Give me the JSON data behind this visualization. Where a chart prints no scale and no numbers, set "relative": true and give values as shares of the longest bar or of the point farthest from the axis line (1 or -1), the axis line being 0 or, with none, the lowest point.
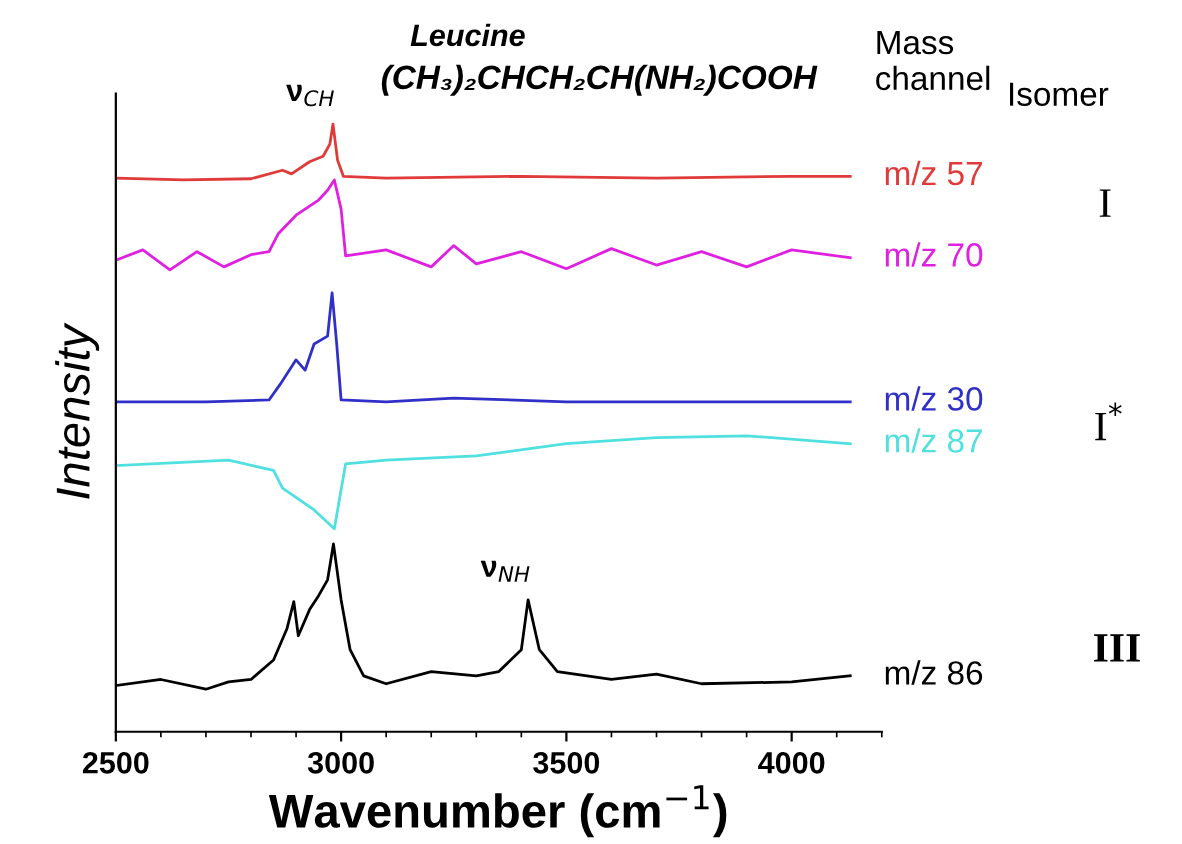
{
  "chart_data": {
    "type": "line",
    "relative": true,
    "xlabel": "Wavenumber (cm$^{−1}$)",
    "ylabel": "Intensity",
    "xlim": [
      2500,
      4200
    ],
    "xticks": [
      2500,
      3000,
      3500,
      4000
    ],
    "grid": false,
    "legend": false,
    "marker": "none",
    "line_style": "solid",
    "annotations": [
      {
        "text": "ν$_{CH}$",
        "x": 2982,
        "y": 1.0
      },
      {
        "text": "ν$_{NH}$",
        "x": 3415,
        "y": 0.217
      },
      "Leucine",
      "(CH₃)₂CHCH₂CH(NH₂)COOH",
      "Mass\nchannel",
      "Isomer",
      "I",
      "I$^{*}$",
      "III"
    ],
    "series": [
      {
        "name": "m/z 57",
        "color": "#e03a3a",
        "x": [
          2500,
          2650,
          2800,
          2870,
          2890,
          2930,
          2960,
          2975,
          2982,
          2992,
          3005,
          3100,
          3400,
          3700,
          4000,
          4130
        ],
        "values": [
          0.911,
          0.908,
          0.91,
          0.924,
          0.918,
          0.938,
          0.947,
          0.967,
          1.0,
          0.941,
          0.914,
          0.911,
          0.914,
          0.911,
          0.914,
          0.914
        ]
      },
      {
        "name": "m/z 70",
        "color": "#e020e0",
        "x": [
          2500,
          2560,
          2620,
          2680,
          2740,
          2800,
          2840,
          2860,
          2900,
          2950,
          2970,
          2985,
          3000,
          3010,
          3100,
          3200,
          3250,
          3300,
          3400,
          3500,
          3600,
          3700,
          3800,
          3900,
          4000,
          4130
        ],
        "values": [
          0.776,
          0.793,
          0.76,
          0.79,
          0.765,
          0.785,
          0.79,
          0.819,
          0.85,
          0.875,
          0.891,
          0.908,
          0.86,
          0.783,
          0.793,
          0.765,
          0.8,
          0.77,
          0.79,
          0.762,
          0.795,
          0.768,
          0.79,
          0.765,
          0.793,
          0.78
        ]
      },
      {
        "name": "m/z 30",
        "color": "#3030c8",
        "x": [
          2500,
          2700,
          2840,
          2865,
          2900,
          2920,
          2940,
          2970,
          2980,
          2990,
          3000,
          3100,
          3250,
          3500,
          3800,
          4130
        ],
        "values": [
          0.543,
          0.543,
          0.546,
          0.572,
          0.612,
          0.595,
          0.638,
          0.651,
          0.722,
          0.64,
          0.546,
          0.543,
          0.549,
          0.543,
          0.543,
          0.543
        ]
      },
      {
        "name": "m/z 87",
        "color": "#50e0e0",
        "x": [
          2500,
          2750,
          2850,
          2870,
          2940,
          2985,
          3010,
          3100,
          3300,
          3500,
          3700,
          3900,
          4130
        ],
        "values": [
          0.438,
          0.447,
          0.43,
          0.401,
          0.365,
          0.334,
          0.441,
          0.447,
          0.454,
          0.474,
          0.484,
          0.487,
          0.474
        ]
      },
      {
        "name": "m/z 86",
        "color": "#000000",
        "x": [
          2500,
          2600,
          2700,
          2750,
          2800,
          2850,
          2880,
          2895,
          2905,
          2930,
          2950,
          2970,
          2983,
          3000,
          3020,
          3050,
          3100,
          3200,
          3300,
          3350,
          3400,
          3415,
          3440,
          3480,
          3600,
          3700,
          3800,
          4000,
          4130
        ],
        "values": [
          0.076,
          0.086,
          0.07,
          0.082,
          0.086,
          0.118,
          0.17,
          0.214,
          0.158,
          0.201,
          0.224,
          0.25,
          0.309,
          0.217,
          0.135,
          0.092,
          0.079,
          0.099,
          0.092,
          0.099,
          0.135,
          0.217,
          0.135,
          0.099,
          0.086,
          0.095,
          0.079,
          0.082,
          0.092
        ]
      }
    ]
  }
}
